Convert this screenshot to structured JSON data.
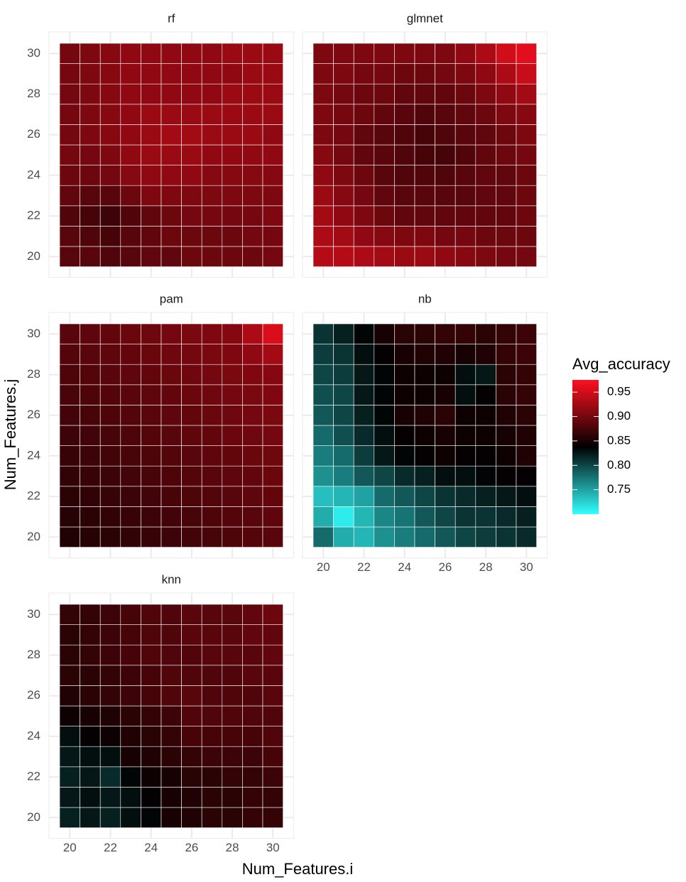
{
  "chart_data": {
    "type": "heatmap",
    "x_label": "Num_Features.i",
    "y_label": "Num_Features.j",
    "x": [
      20,
      21,
      22,
      23,
      24,
      25,
      26,
      27,
      28,
      29,
      30
    ],
    "y": [
      20,
      21,
      22,
      23,
      24,
      25,
      26,
      27,
      28,
      29,
      30
    ],
    "xlim": [
      19.5,
      30.5
    ],
    "ylim": [
      19.5,
      30.5
    ],
    "xticks": [
      20,
      22,
      24,
      26,
      28,
      30
    ],
    "yticks": [
      20,
      22,
      24,
      26,
      28,
      30
    ],
    "grid": true,
    "colorbar": {
      "title": "Avg_accuracy",
      "lim": [
        0.7,
        0.975
      ],
      "ticks": [
        0.95,
        {
          "value": 0.9,
          "label": "0.90"
        },
        0.85,
        {
          "value": 0.8,
          "label": "0.80"
        },
        0.75
      ],
      "colors": [
        "#33ffff",
        "#000000",
        "#ff1020"
      ]
    },
    "panels": [
      {
        "title": "rf",
        "values": [
          [
            0.885,
            0.885,
            0.88,
            0.885,
            0.89,
            0.89,
            0.895,
            0.895,
            0.895,
            0.895,
            0.9
          ],
          [
            0.885,
            0.88,
            0.875,
            0.885,
            0.89,
            0.895,
            0.895,
            0.895,
            0.895,
            0.9,
            0.9
          ],
          [
            0.88,
            0.875,
            0.87,
            0.88,
            0.89,
            0.895,
            0.9,
            0.9,
            0.9,
            0.9,
            0.905
          ],
          [
            0.89,
            0.885,
            0.885,
            0.895,
            0.905,
            0.905,
            0.905,
            0.905,
            0.905,
            0.905,
            0.905
          ],
          [
            0.895,
            0.895,
            0.9,
            0.91,
            0.915,
            0.915,
            0.915,
            0.91,
            0.91,
            0.91,
            0.91
          ],
          [
            0.9,
            0.9,
            0.905,
            0.915,
            0.92,
            0.92,
            0.92,
            0.915,
            0.915,
            0.915,
            0.915
          ],
          [
            0.9,
            0.905,
            0.91,
            0.915,
            0.92,
            0.925,
            0.925,
            0.92,
            0.92,
            0.92,
            0.915
          ],
          [
            0.9,
            0.905,
            0.91,
            0.915,
            0.92,
            0.92,
            0.92,
            0.92,
            0.92,
            0.92,
            0.92
          ],
          [
            0.9,
            0.905,
            0.91,
            0.915,
            0.915,
            0.915,
            0.915,
            0.915,
            0.92,
            0.92,
            0.92
          ],
          [
            0.9,
            0.905,
            0.91,
            0.915,
            0.915,
            0.915,
            0.915,
            0.915,
            0.915,
            0.92,
            0.92
          ],
          [
            0.9,
            0.905,
            0.91,
            0.915,
            0.915,
            0.915,
            0.915,
            0.915,
            0.92,
            0.92,
            0.92
          ]
        ]
      },
      {
        "title": "glmnet",
        "values": [
          [
            0.935,
            0.935,
            0.93,
            0.925,
            0.92,
            0.92,
            0.915,
            0.91,
            0.905,
            0.9,
            0.9
          ],
          [
            0.93,
            0.925,
            0.915,
            0.91,
            0.905,
            0.905,
            0.9,
            0.9,
            0.895,
            0.895,
            0.895
          ],
          [
            0.925,
            0.915,
            0.905,
            0.895,
            0.89,
            0.89,
            0.89,
            0.89,
            0.89,
            0.89,
            0.895
          ],
          [
            0.92,
            0.91,
            0.9,
            0.89,
            0.885,
            0.885,
            0.885,
            0.885,
            0.89,
            0.89,
            0.895
          ],
          [
            0.915,
            0.905,
            0.895,
            0.885,
            0.88,
            0.88,
            0.88,
            0.885,
            0.89,
            0.89,
            0.895
          ],
          [
            0.91,
            0.9,
            0.89,
            0.885,
            0.88,
            0.875,
            0.875,
            0.88,
            0.89,
            0.895,
            0.9
          ],
          [
            0.905,
            0.9,
            0.89,
            0.885,
            0.88,
            0.875,
            0.88,
            0.885,
            0.89,
            0.895,
            0.905
          ],
          [
            0.905,
            0.9,
            0.895,
            0.89,
            0.885,
            0.88,
            0.885,
            0.89,
            0.895,
            0.905,
            0.91
          ],
          [
            0.905,
            0.9,
            0.895,
            0.895,
            0.89,
            0.89,
            0.89,
            0.895,
            0.905,
            0.915,
            0.925
          ],
          [
            0.905,
            0.905,
            0.9,
            0.9,
            0.895,
            0.895,
            0.9,
            0.905,
            0.915,
            0.93,
            0.945
          ],
          [
            0.905,
            0.905,
            0.905,
            0.905,
            0.905,
            0.905,
            0.905,
            0.915,
            0.93,
            0.95,
            0.96
          ]
        ]
      },
      {
        "title": "pam",
        "values": [
          [
            0.855,
            0.858,
            0.861,
            0.864,
            0.867,
            0.87,
            0.873,
            0.876,
            0.879,
            0.882,
            0.885
          ],
          [
            0.858,
            0.861,
            0.864,
            0.867,
            0.87,
            0.873,
            0.876,
            0.879,
            0.882,
            0.885,
            0.888
          ],
          [
            0.861,
            0.864,
            0.867,
            0.87,
            0.873,
            0.876,
            0.879,
            0.882,
            0.885,
            0.888,
            0.891
          ],
          [
            0.864,
            0.867,
            0.87,
            0.873,
            0.876,
            0.879,
            0.882,
            0.885,
            0.888,
            0.891,
            0.894
          ],
          [
            0.867,
            0.87,
            0.873,
            0.876,
            0.879,
            0.882,
            0.885,
            0.888,
            0.891,
            0.894,
            0.897
          ],
          [
            0.87,
            0.873,
            0.876,
            0.879,
            0.882,
            0.885,
            0.888,
            0.891,
            0.894,
            0.897,
            0.9
          ],
          [
            0.873,
            0.876,
            0.879,
            0.882,
            0.885,
            0.888,
            0.891,
            0.894,
            0.897,
            0.9,
            0.903
          ],
          [
            0.876,
            0.879,
            0.882,
            0.885,
            0.888,
            0.891,
            0.894,
            0.897,
            0.9,
            0.903,
            0.906
          ],
          [
            0.879,
            0.882,
            0.885,
            0.888,
            0.891,
            0.894,
            0.897,
            0.9,
            0.903,
            0.906,
            0.909
          ],
          [
            0.882,
            0.885,
            0.888,
            0.891,
            0.894,
            0.897,
            0.9,
            0.903,
            0.906,
            0.915,
            0.925
          ],
          [
            0.885,
            0.888,
            0.891,
            0.894,
            0.897,
            0.9,
            0.903,
            0.906,
            0.909,
            0.93,
            0.955
          ]
        ]
      },
      {
        "title": "nb",
        "values": [
          [
            0.78,
            0.745,
            0.74,
            0.76,
            0.77,
            0.78,
            0.79,
            0.8,
            0.805,
            0.81,
            0.815
          ],
          [
            0.745,
            0.71,
            0.74,
            0.765,
            0.775,
            0.79,
            0.8,
            0.81,
            0.81,
            0.815,
            0.82
          ],
          [
            0.735,
            0.74,
            0.75,
            0.78,
            0.79,
            0.8,
            0.81,
            0.815,
            0.82,
            0.825,
            0.83
          ],
          [
            0.76,
            0.77,
            0.79,
            0.8,
            0.815,
            0.82,
            0.83,
            0.83,
            0.835,
            0.84,
            0.84
          ],
          [
            0.77,
            0.78,
            0.805,
            0.825,
            0.835,
            0.84,
            0.845,
            0.84,
            0.84,
            0.845,
            0.855
          ],
          [
            0.78,
            0.795,
            0.815,
            0.83,
            0.84,
            0.845,
            0.85,
            0.845,
            0.845,
            0.85,
            0.855
          ],
          [
            0.79,
            0.8,
            0.82,
            0.835,
            0.85,
            0.855,
            0.86,
            0.845,
            0.845,
            0.855,
            0.86
          ],
          [
            0.795,
            0.8,
            0.825,
            0.835,
            0.845,
            0.845,
            0.85,
            0.83,
            0.84,
            0.86,
            0.865
          ],
          [
            0.8,
            0.805,
            0.825,
            0.835,
            0.845,
            0.845,
            0.845,
            0.83,
            0.825,
            0.86,
            0.865
          ],
          [
            0.805,
            0.81,
            0.83,
            0.84,
            0.85,
            0.855,
            0.855,
            0.85,
            0.855,
            0.865,
            0.87
          ],
          [
            0.81,
            0.82,
            0.835,
            0.85,
            0.86,
            0.86,
            0.865,
            0.865,
            0.86,
            0.865,
            0.87
          ]
        ]
      },
      {
        "title": "knn",
        "values": [
          [
            0.82,
            0.825,
            0.82,
            0.83,
            0.835,
            0.85,
            0.855,
            0.86,
            0.86,
            0.865,
            0.865
          ],
          [
            0.825,
            0.83,
            0.825,
            0.83,
            0.84,
            0.85,
            0.855,
            0.86,
            0.86,
            0.865,
            0.865
          ],
          [
            0.82,
            0.825,
            0.815,
            0.835,
            0.845,
            0.85,
            0.86,
            0.86,
            0.865,
            0.865,
            0.87
          ],
          [
            0.825,
            0.83,
            0.83,
            0.85,
            0.855,
            0.86,
            0.865,
            0.87,
            0.87,
            0.87,
            0.875
          ],
          [
            0.83,
            0.84,
            0.845,
            0.855,
            0.86,
            0.865,
            0.875,
            0.875,
            0.875,
            0.875,
            0.88
          ],
          [
            0.845,
            0.85,
            0.855,
            0.86,
            0.865,
            0.87,
            0.88,
            0.88,
            0.88,
            0.88,
            0.88
          ],
          [
            0.855,
            0.86,
            0.865,
            0.87,
            0.875,
            0.88,
            0.885,
            0.88,
            0.88,
            0.88,
            0.885
          ],
          [
            0.86,
            0.86,
            0.865,
            0.87,
            0.875,
            0.88,
            0.88,
            0.88,
            0.88,
            0.885,
            0.885
          ],
          [
            0.86,
            0.865,
            0.87,
            0.875,
            0.88,
            0.88,
            0.88,
            0.885,
            0.885,
            0.885,
            0.89
          ],
          [
            0.86,
            0.865,
            0.87,
            0.875,
            0.88,
            0.88,
            0.885,
            0.885,
            0.885,
            0.89,
            0.89
          ],
          [
            0.865,
            0.865,
            0.87,
            0.875,
            0.88,
            0.88,
            0.885,
            0.885,
            0.885,
            0.89,
            0.895
          ]
        ]
      }
    ]
  }
}
